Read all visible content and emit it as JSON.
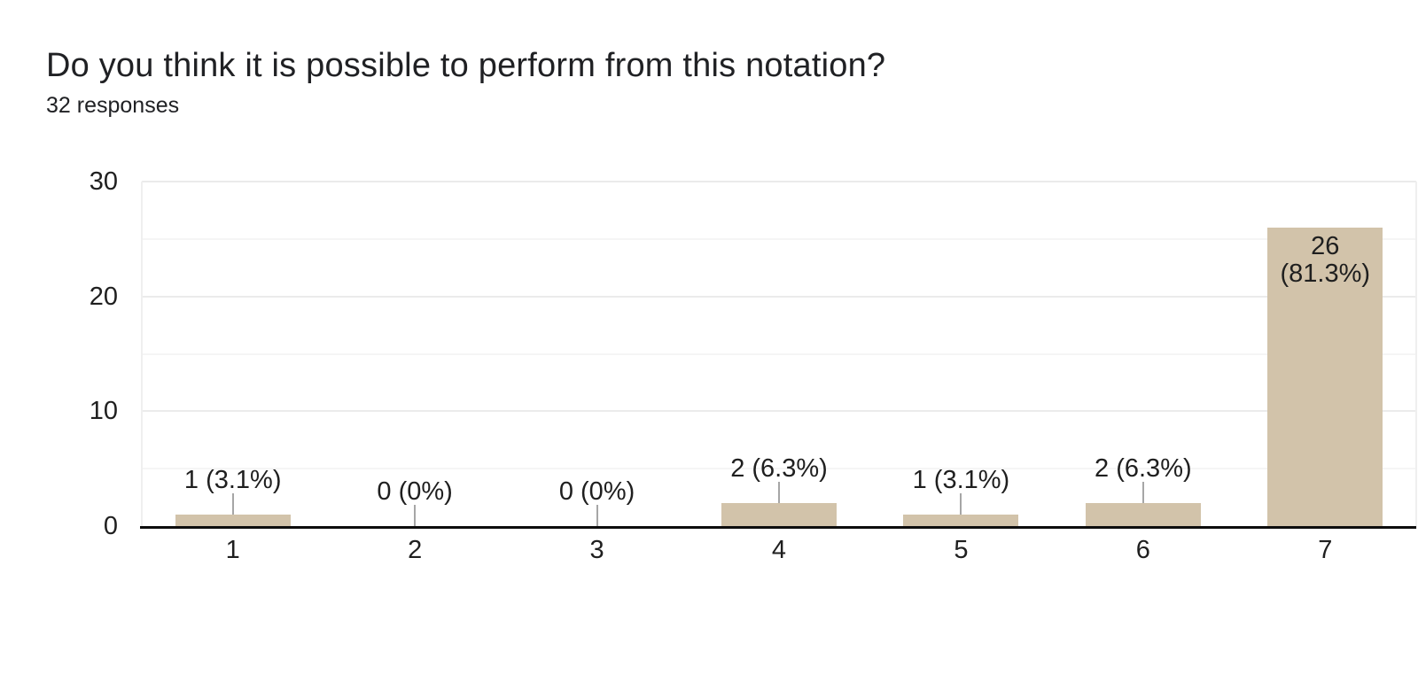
{
  "header": {
    "title": "Do you think it is possible to perform from this notation?",
    "responses": "32 responses"
  },
  "chart_data": {
    "type": "bar",
    "title": "Do you think it is possible to perform from this notation?",
    "subtitle": "32 responses",
    "total_responses": 32,
    "categories": [
      "1",
      "2",
      "3",
      "4",
      "5",
      "6",
      "7"
    ],
    "values": [
      1,
      0,
      0,
      2,
      1,
      2,
      26
    ],
    "percentages": [
      "3.1%",
      "0%",
      "0%",
      "6.3%",
      "3.1%",
      "6.3%",
      "81.3%"
    ],
    "labels": [
      "1 (3.1%)",
      "0 (0%)",
      "0 (0%)",
      "2 (6.3%)",
      "1 (3.1%)",
      "2 (6.3%)",
      "26 (81.3%)"
    ],
    "xlabel": "",
    "ylabel": "",
    "ylim": [
      0,
      30
    ],
    "yticks": [
      0,
      10,
      20,
      30
    ],
    "gridline_step": 5,
    "grid": "on",
    "legend": "none",
    "colors": {
      "bar": "#d2c3aa",
      "gridline_major": "#ebebeb",
      "gridline_minor": "#f5f5f5",
      "plot_border": "#efefef",
      "axis_line": "#0d0d0d",
      "callout_line": "#a6a6a6",
      "text": "#1f1f1f"
    }
  }
}
